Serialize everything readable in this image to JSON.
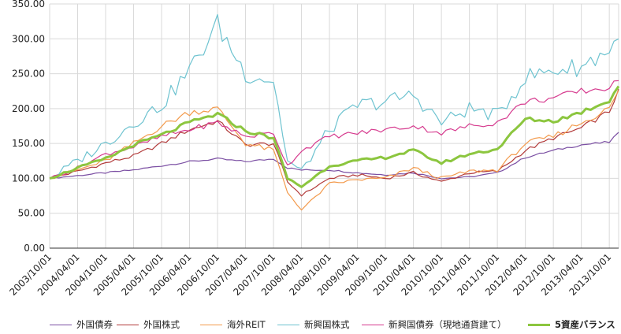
{
  "chart_data": {
    "type": "line",
    "ylim": [
      0,
      350
    ],
    "yticks": [
      "0.00",
      "50.00",
      "100.00",
      "150.00",
      "200.00",
      "250.00",
      "300.00",
      "350.00"
    ],
    "xticks": [
      "2003/10/01",
      "2004/04/01",
      "2004/10/01",
      "2005/04/01",
      "2005/10/01",
      "2006/04/01",
      "2006/10/01",
      "2007/04/01",
      "2007/10/01",
      "2008/04/01",
      "2008/10/01",
      "2009/04/01",
      "2009/10/01",
      "2010/04/01",
      "2010/10/01",
      "2011/04/01",
      "2011/10/01",
      "2012/04/01",
      "2012/10/01",
      "2013/04/01",
      "2013/10/01"
    ],
    "grid": true,
    "legend_position": "bottom",
    "x_anchor_dates": [
      "2003/10/01",
      "2004/04/01",
      "2004/10/01",
      "2005/04/01",
      "2005/10/01",
      "2006/04/01",
      "2006/10/01",
      "2007/04/01",
      "2007/10/01",
      "2008/01/01",
      "2008/04/01",
      "2008/10/01",
      "2009/04/01",
      "2009/10/01",
      "2010/04/01",
      "2010/10/01",
      "2011/04/01",
      "2011/10/01",
      "2012/04/01",
      "2012/10/01",
      "2013/04/01",
      "2013/10/01",
      "2013/12/01"
    ],
    "series": [
      {
        "name": "外国債券",
        "color": "#7b4fa3",
        "width": 1.2,
        "values": [
          100,
          104,
          108,
          112,
          118,
          124,
          128,
          124,
          128,
          115,
          112,
          112,
          108,
          105,
          108,
          100,
          102,
          108,
          130,
          140,
          148,
          152,
          166
        ]
      },
      {
        "name": "外国株式",
        "color": "#b23a3a",
        "width": 1.2,
        "values": [
          100,
          110,
          122,
          132,
          150,
          170,
          182,
          148,
          150,
          95,
          76,
          100,
          105,
          100,
          108,
          95,
          108,
          110,
          140,
          158,
          172,
          196,
          228
        ]
      },
      {
        "name": "海外REIT",
        "color": "#f39a4c",
        "width": 1.2,
        "values": [
          100,
          112,
          125,
          150,
          175,
          195,
          200,
          150,
          140,
          80,
          55,
          92,
          98,
          100,
          115,
          100,
          110,
          112,
          150,
          160,
          180,
          200,
          226
        ]
      },
      {
        "name": "新興国株式",
        "color": "#6ec3d0",
        "width": 1.2,
        "values": [
          100,
          125,
          150,
          180,
          205,
          255,
          320,
          250,
          240,
          125,
          110,
          170,
          205,
          210,
          220,
          180,
          200,
          190,
          245,
          255,
          260,
          285,
          300
        ]
      },
      {
        "name": "新興国債券（現地通貨建て）",
        "color": "#d63a8e",
        "width": 1.2,
        "values": [
          100,
          115,
          135,
          145,
          160,
          170,
          180,
          160,
          165,
          118,
          140,
          160,
          165,
          170,
          175,
          165,
          175,
          180,
          210,
          215,
          225,
          230,
          240
        ]
      },
      {
        "name": "5資産バランス",
        "color": "#8cc63f",
        "width": 3,
        "values": [
          100,
          115,
          128,
          148,
          162,
          180,
          192,
          168,
          158,
          100,
          88,
          118,
          125,
          130,
          140,
          122,
          135,
          142,
          185,
          182,
          195,
          212,
          232
        ]
      }
    ]
  }
}
